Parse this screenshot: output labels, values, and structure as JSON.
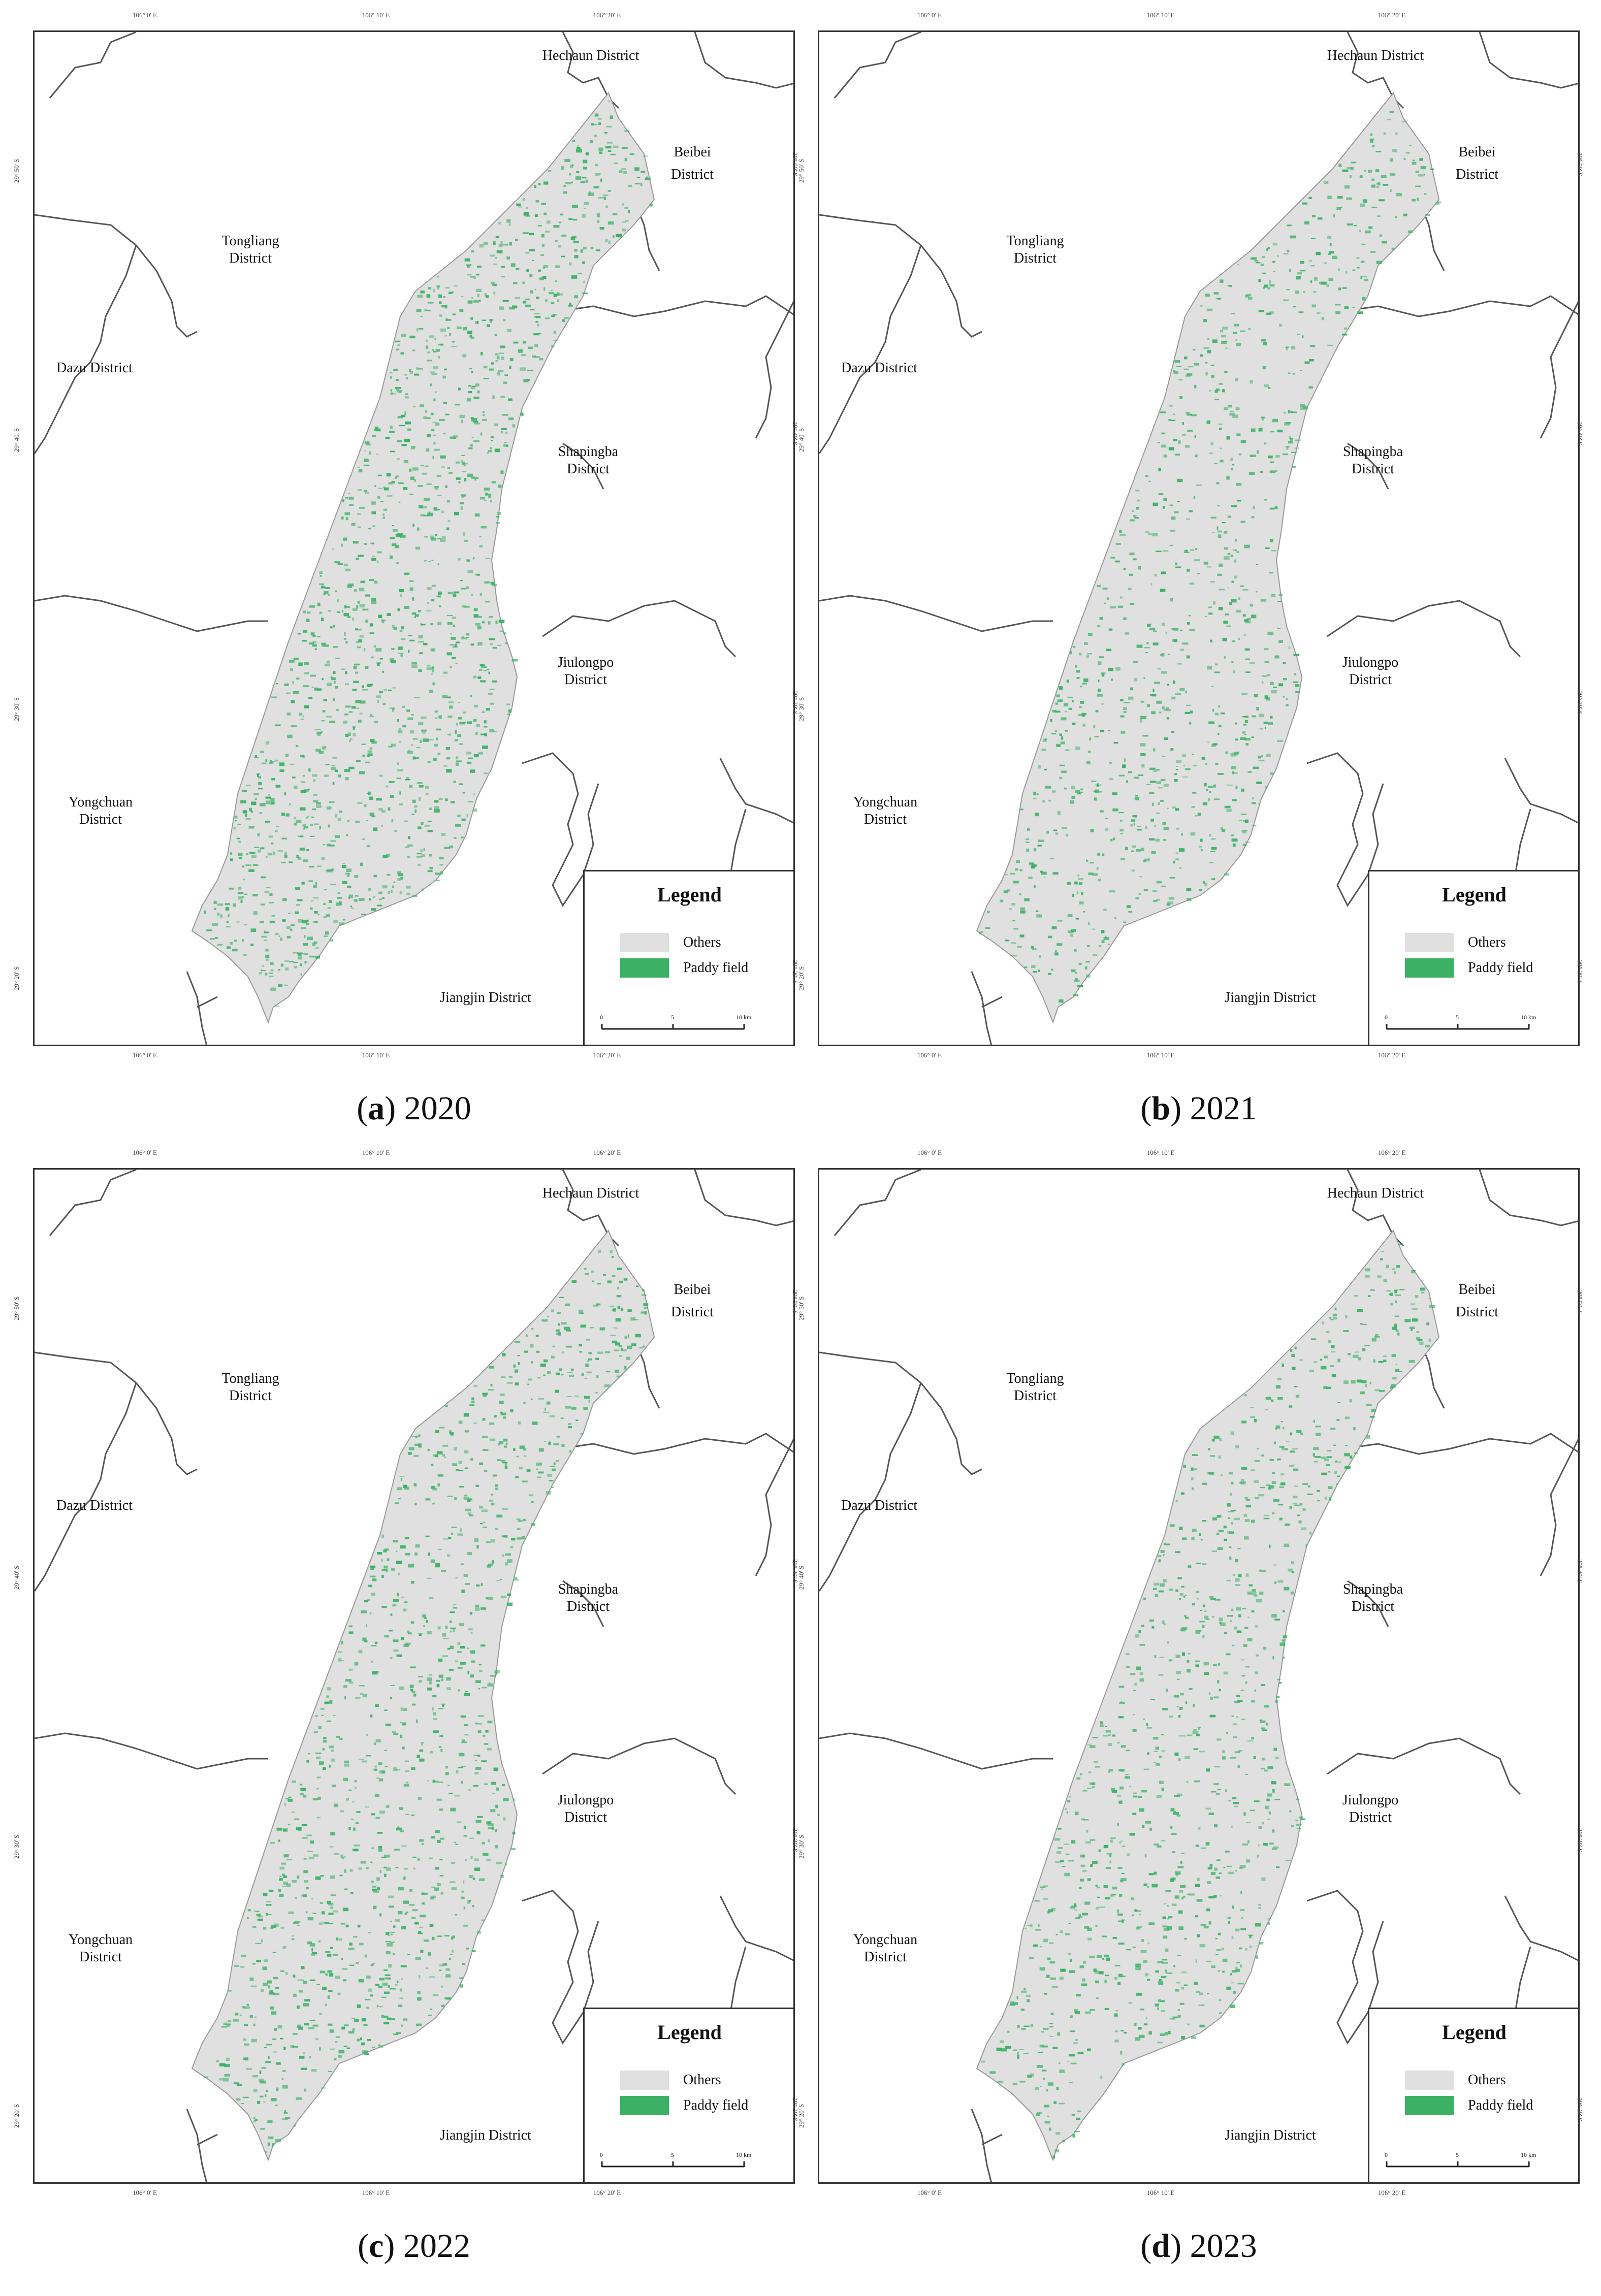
{
  "colors": {
    "others": "#e0e0e0",
    "paddy": "#3cb165",
    "boundary": "#555555",
    "frame": "#333333"
  },
  "map_labels": {
    "lon_ticks": [
      "106° 0' E",
      "106° 10' E",
      "106° 20' E"
    ],
    "lat_ticks": [
      "29° 50' S",
      "29° 40' S",
      "29° 30' S",
      "29° 20' S"
    ],
    "districts": {
      "hechuan": "Hechaun District",
      "beibei_1": "Beibei",
      "beibei_2": "District",
      "tongliang_1": "Tongliang",
      "tongliang_2": "District",
      "dazu": "Dazu District",
      "shapingba_1": "Shapingba",
      "shapingba_2": "District",
      "jiulongpo_1": "Jiulongpo",
      "jiulongpo_2": "District",
      "yongchuan_1": "Yongchuan",
      "yongchuan_2": "District",
      "jiangjin": "Jiangjin District"
    },
    "legend": {
      "title": "Legend",
      "others": "Others",
      "paddy": "Paddy field"
    },
    "scale": {
      "t0": "0",
      "t5": "5",
      "t10": "10 km"
    }
  },
  "panels": [
    {
      "letter": "a",
      "year": "2020",
      "paddy_density": 0.55
    },
    {
      "letter": "b",
      "year": "2021",
      "paddy_density": 0.38
    },
    {
      "letter": "c",
      "year": "2022",
      "paddy_density": 0.45
    },
    {
      "letter": "d",
      "year": "2023",
      "paddy_density": 0.4
    }
  ]
}
